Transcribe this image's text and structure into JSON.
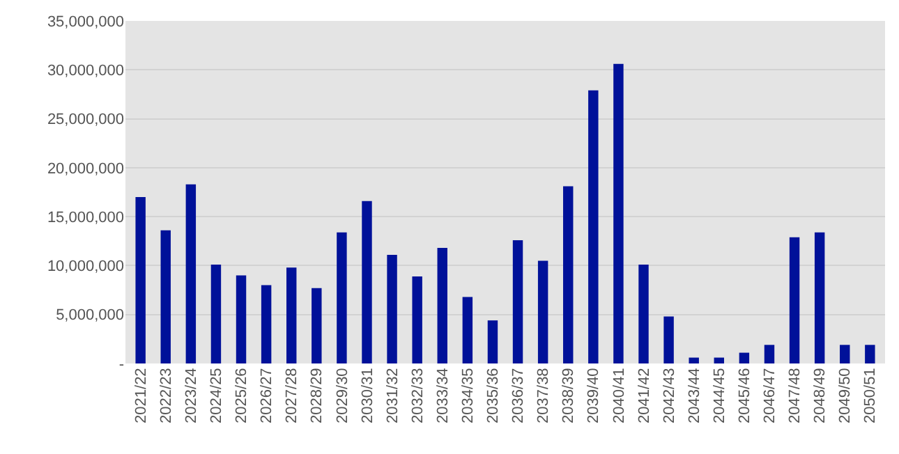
{
  "chart_data": {
    "type": "bar",
    "categories": [
      "2021/22",
      "2022/23",
      "2023/24",
      "2024/25",
      "2025/26",
      "2026/27",
      "2027/28",
      "2028/29",
      "2029/30",
      "2030/31",
      "2031/32",
      "2032/33",
      "2033/34",
      "2034/35",
      "2035/36",
      "2036/37",
      "2037/38",
      "2038/39",
      "2039/40",
      "2040/41",
      "2041/42",
      "2042/43",
      "2043/44",
      "2044/45",
      "2045/46",
      "2046/47",
      "2047/48",
      "2048/49",
      "2049/50",
      "2050/51"
    ],
    "values": [
      17000000,
      13600000,
      18300000,
      10100000,
      9000000,
      8000000,
      9800000,
      7700000,
      13400000,
      16600000,
      11100000,
      8900000,
      11800000,
      6800000,
      4400000,
      12600000,
      10500000,
      18100000,
      27900000,
      30600000,
      10100000,
      4800000,
      600000,
      600000,
      1100000,
      1900000,
      12900000,
      13400000,
      1900000,
      1900000
    ],
    "color": "#001199",
    "ylim": [
      0,
      35000000
    ],
    "yticks": [
      {
        "value": 0,
        "label": "-"
      },
      {
        "value": 5000000,
        "label": "5,000,000"
      },
      {
        "value": 10000000,
        "label": "10,000,000"
      },
      {
        "value": 15000000,
        "label": "15,000,000"
      },
      {
        "value": 20000000,
        "label": "20,000,000"
      },
      {
        "value": 25000000,
        "label": "25,000,000"
      },
      {
        "value": 30000000,
        "label": "30,000,000"
      },
      {
        "value": 35000000,
        "label": "35,000,000"
      }
    ],
    "grid": "y"
  }
}
